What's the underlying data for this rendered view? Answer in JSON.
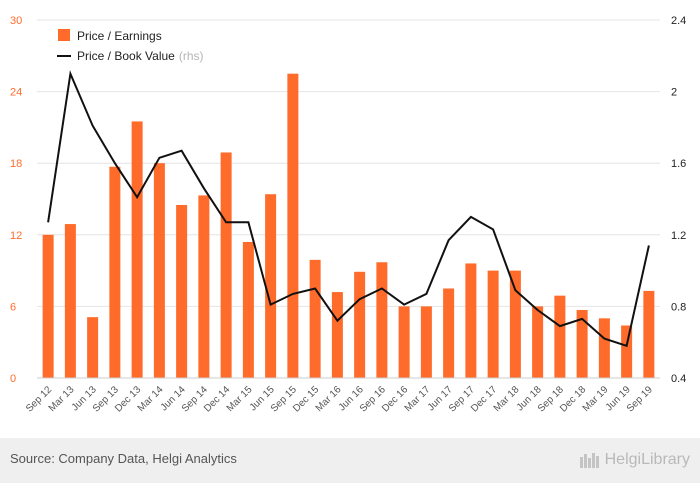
{
  "chart_data": {
    "type": "bar",
    "categories": [
      "Sep 12",
      "Mar 13",
      "Jun 13",
      "Sep 13",
      "Dec 13",
      "Mar 14",
      "Jun 14",
      "Sep 14",
      "Dec 14",
      "Mar 15",
      "Jun 15",
      "Sep 15",
      "Dec 15",
      "Mar 16",
      "Jun 16",
      "Sep 16",
      "Dec 16",
      "Mar 17",
      "Jun 17",
      "Sep 17",
      "Dec 17",
      "Mar 18",
      "Jun 18",
      "Sep 18",
      "Dec 18",
      "Mar 19",
      "Jun 19",
      "Sep 19"
    ],
    "series": [
      {
        "name": "Price / Earnings",
        "type": "bar",
        "axis": "left",
        "color": "#ff6b2b",
        "values": [
          12.0,
          12.9,
          5.1,
          17.7,
          21.5,
          18.0,
          14.5,
          15.3,
          18.9,
          11.4,
          15.4,
          25.5,
          9.9,
          7.2,
          8.9,
          9.7,
          6.0,
          6.0,
          7.5,
          9.6,
          9.0,
          9.0,
          6.0,
          6.9,
          5.7,
          5.0,
          4.4,
          7.3
        ]
      },
      {
        "name": "Price / Book Value",
        "name_suffix": "(rhs)",
        "type": "line",
        "axis": "right",
        "color": "#111111",
        "values": [
          1.27,
          2.1,
          1.81,
          1.6,
          1.41,
          1.63,
          1.67,
          1.46,
          1.27,
          1.27,
          0.81,
          0.87,
          0.9,
          0.72,
          0.84,
          0.9,
          0.81,
          0.87,
          1.17,
          1.3,
          1.23,
          0.89,
          0.78,
          0.69,
          0.73,
          0.62,
          0.58,
          1.14
        ]
      }
    ],
    "y_left": {
      "ticks": [
        "0",
        "6",
        "12",
        "18",
        "24",
        "30"
      ],
      "range": [
        0,
        30
      ]
    },
    "y_right": {
      "ticks": [
        "0.4",
        "0.8",
        "1.2",
        "1.6",
        "2",
        "2.4"
      ],
      "range": [
        0.4,
        2.4
      ]
    },
    "grid": true,
    "legend_position": "top-left",
    "left_axis_color": "#ff6b2b",
    "right_axis_color": "#222222"
  },
  "footer": {
    "source": "Source: Company Data, Helgi Analytics",
    "brand": "HelgiLibrary"
  }
}
